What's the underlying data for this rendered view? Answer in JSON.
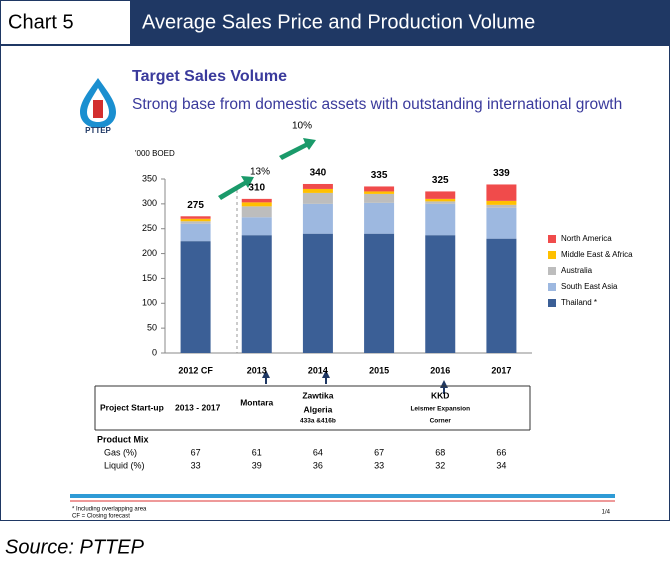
{
  "header": {
    "label": "Chart 5",
    "title": "Average Sales Price and Production Volume"
  },
  "slide": {
    "title": "Target Sales Volume",
    "subtitle": "Strong base from domestic assets with outstanding international growth",
    "logo": "PTTEP"
  },
  "chart_data": {
    "type": "bar",
    "stacked": true,
    "y_label": "'000 BOED",
    "categories": [
      "2012 CF",
      "2013",
      "2014",
      "2015",
      "2016",
      "2017"
    ],
    "series": [
      {
        "name": "Thailand *",
        "color": "#3b5f96",
        "values": [
          225,
          237,
          240,
          240,
          237,
          230
        ]
      },
      {
        "name": "South East Asia",
        "color": "#9db8e0",
        "values": [
          35,
          36,
          60,
          62,
          63,
          62
        ]
      },
      {
        "name": "Australia",
        "color": "#bdbdbd",
        "values": [
          5,
          22,
          22,
          18,
          5,
          6
        ]
      },
      {
        "name": "Middle East & Africa",
        "color": "#ffc000",
        "values": [
          5,
          8,
          8,
          5,
          5,
          8
        ]
      },
      {
        "name": "North America",
        "color": "#f04b4b",
        "values": [
          5,
          7,
          10,
          10,
          15,
          33
        ]
      }
    ],
    "totals": [
      275,
      310,
      340,
      335,
      325,
      339
    ],
    "annotations": [
      "13%",
      "10%"
    ],
    "ylim": [
      0,
      350
    ],
    "yticks": [
      0,
      50,
      100,
      150,
      200,
      250,
      300,
      350
    ],
    "legend": "right"
  },
  "projects": {
    "label": "Project Start-up",
    "period": "2013 - 2017",
    "entries": [
      [
        "Montara"
      ],
      [
        "Zawtika",
        "Algeria",
        "433a &416b"
      ],
      [
        "KKD",
        "Leismer Expansion",
        "Corner"
      ]
    ]
  },
  "product_mix": {
    "title": "Product Mix",
    "rows": [
      {
        "label": "Gas (%)",
        "values": [
          67,
          61,
          64,
          67,
          68,
          66
        ]
      },
      {
        "label": "Liquid (%)",
        "values": [
          33,
          39,
          36,
          33,
          32,
          34
        ]
      }
    ]
  },
  "footnotes": [
    "* Including overlapping area",
    "CF = Closing forecast"
  ],
  "page": "1/4",
  "source": "Source: PTTEP"
}
